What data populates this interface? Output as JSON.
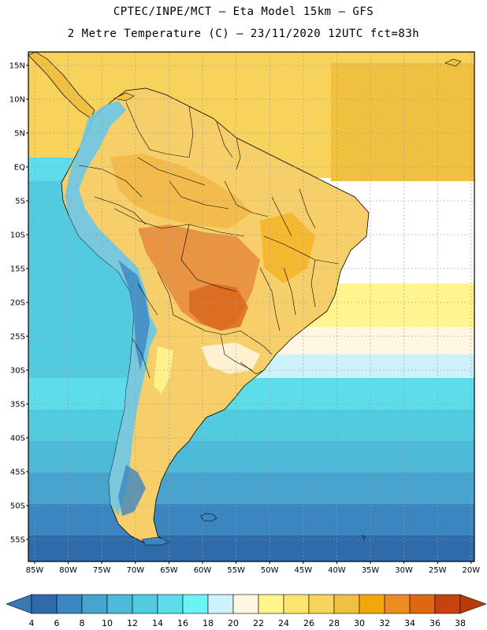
{
  "header": {
    "line1": "CPTEC/INPE/MCT –  Eta Model 15km – GFS",
    "line2": "2 Metre Temperature (C) – 23/11/2020 12UTC fct=83h"
  },
  "map": {
    "lat_labels": [
      "15N",
      "10N",
      "5N",
      "EQ",
      "5S",
      "10S",
      "15S",
      "20S",
      "25S",
      "30S",
      "35S",
      "40S",
      "45S",
      "50S",
      "55S"
    ],
    "lon_labels": [
      "85W",
      "80W",
      "75W",
      "70W",
      "65W",
      "60W",
      "55W",
      "50W",
      "45W",
      "40W",
      "35W",
      "30W",
      "25W",
      "20W"
    ]
  },
  "colorbar": {
    "labels": [
      "4",
      "6",
      "8",
      "10",
      "12",
      "14",
      "16",
      "18",
      "20",
      "22",
      "24",
      "26",
      "28",
      "30",
      "32",
      "34",
      "36",
      "38"
    ],
    "low_color": "#3a78b4",
    "high_color": "#b83c0a",
    "bins": [
      "#2f6aaa",
      "#3b86c1",
      "#48a4cf",
      "#4cbad8",
      "#52cbe0",
      "#5ddde9",
      "#6cf3f4",
      "#cdf2fb",
      "#fff7e4",
      "#fff48e",
      "#fde46e",
      "#f7d35c",
      "#f0c140",
      "#f1a80b",
      "#ec8d21",
      "#df6712",
      "#c84111"
    ]
  },
  "colors": {
    "ocean_cold": "#2f6aaa",
    "ocean_cool": "#4cbad8",
    "ocean_warm": "#fde46e",
    "land_hot": "#e68a3c",
    "land_warm": "#f7cf6a",
    "andes": "#6cc7e8",
    "border": "#000000"
  }
}
